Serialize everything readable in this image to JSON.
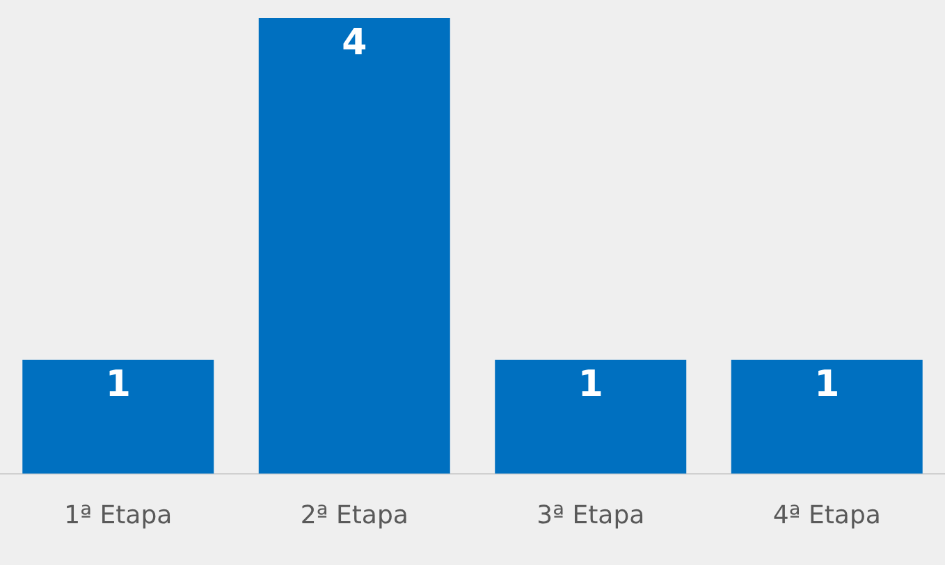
{
  "chart_data": {
    "type": "bar",
    "categories": [
      "1ª Etapa",
      "2ª Etapa",
      "3ª Etapa",
      "4ª Etapa"
    ],
    "values": [
      1,
      4,
      1,
      1
    ],
    "color": "#0070c0",
    "data_labels": true,
    "grid": false,
    "legend": false
  }
}
